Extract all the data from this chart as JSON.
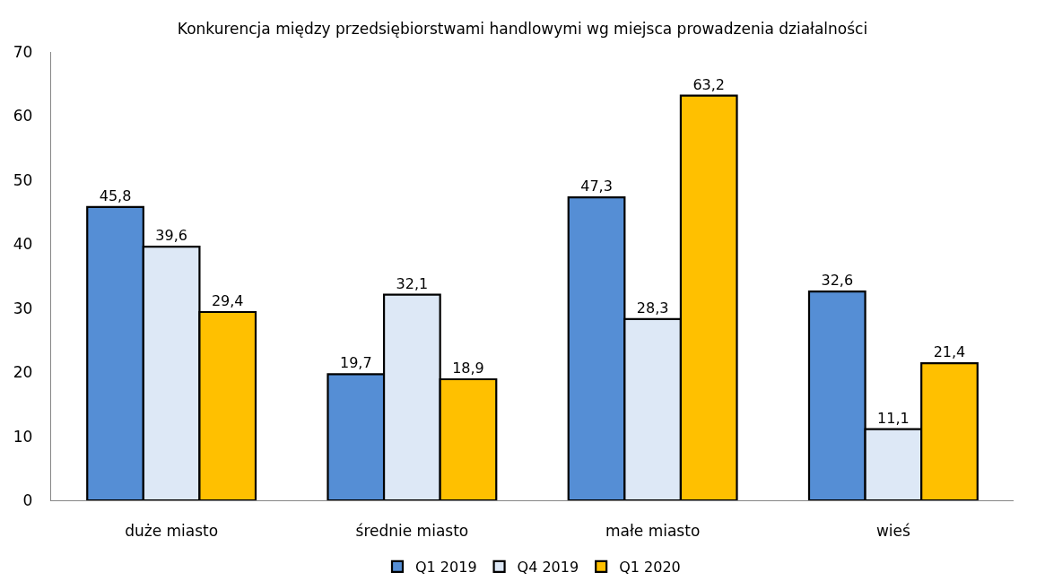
{
  "chart_data": {
    "type": "bar",
    "title": "Konkurencja między przedsiębiorstwami handlowymi wg miejsca prowadzenia działalności",
    "categories": [
      "duże miasto",
      "średnie miasto",
      "małe miasto",
      "wieś"
    ],
    "series": [
      {
        "name": "Q1 2019",
        "color": "#558ed5",
        "values": [
          45.8,
          19.7,
          47.3,
          32.6
        ],
        "value_labels": [
          "45,8",
          "19,7",
          "47,3",
          "32,6"
        ]
      },
      {
        "name": "Q4 2019",
        "color": "#dde8f6",
        "values": [
          39.6,
          32.1,
          28.3,
          11.1
        ],
        "value_labels": [
          "39,6",
          "32,1",
          "28,3",
          "11,1"
        ]
      },
      {
        "name": "Q1 2020",
        "color": "#ffc000",
        "values": [
          29.4,
          18.9,
          63.2,
          21.4
        ],
        "value_labels": [
          "29,4",
          "18,9",
          "63,2",
          "21,4"
        ]
      }
    ],
    "ylim": [
      0,
      70
    ],
    "yticks": [
      0,
      10,
      20,
      30,
      40,
      50,
      60,
      70
    ],
    "grid": false,
    "legend": "bottom"
  }
}
